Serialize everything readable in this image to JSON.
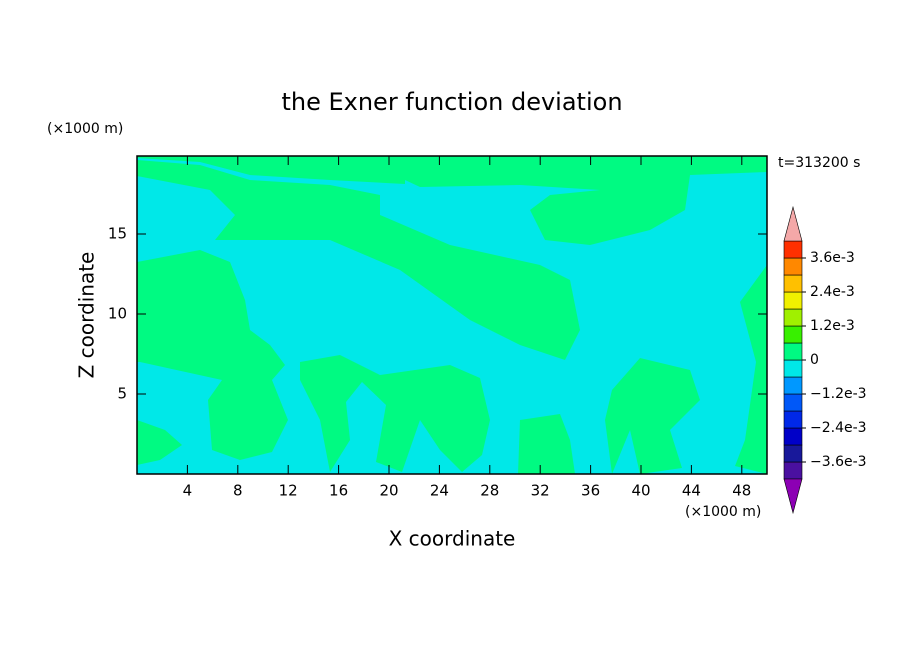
{
  "chart_data": {
    "type": "contour",
    "title": "the Exner function deviation",
    "x_label": "X coordinate",
    "y_label": "Z coordinate",
    "x_unit": "(×1000 m)",
    "y_unit": "(×1000 m)",
    "time_label": "t=313200 s",
    "xlim": [
      0,
      50
    ],
    "xticks": [
      4,
      8,
      12,
      16,
      20,
      24,
      28,
      32,
      36,
      40,
      44,
      48
    ],
    "ylim": [
      0,
      20
    ],
    "yticks": [
      5,
      10,
      15
    ],
    "levels": [
      -0.0042,
      -0.0036,
      -0.003,
      -0.0024,
      -0.0018,
      -0.0012,
      -0.0006,
      0,
      0.0006,
      0.0012,
      0.0018,
      0.0024,
      0.003,
      0.0036,
      0.0042
    ],
    "colors": [
      "#4a10a0",
      "#18189a",
      "#0000c8",
      "#0028e8",
      "#0058f8",
      "#0098ff",
      "#00e8e8",
      "#00fa82",
      "#38f000",
      "#a0f000",
      "#f0f000",
      "#ffc000",
      "#ff8800",
      "#ff3000"
    ],
    "under_color": "#8c00b4",
    "over_color": "#f4a8a8",
    "colorbar_ticks": [
      {
        "value": 0.0036,
        "label": "3.6e-3"
      },
      {
        "value": 0.0024,
        "label": "2.4e-3"
      },
      {
        "value": 0.0012,
        "label": "1.2e-3"
      },
      0,
      {
        "value": -0.0012,
        "label": "−1.2e-3"
      },
      {
        "value": -0.0024,
        "label": "−2.4e-3"
      },
      {
        "value": -0.0036,
        "label": "−3.6e-3"
      }
    ]
  }
}
